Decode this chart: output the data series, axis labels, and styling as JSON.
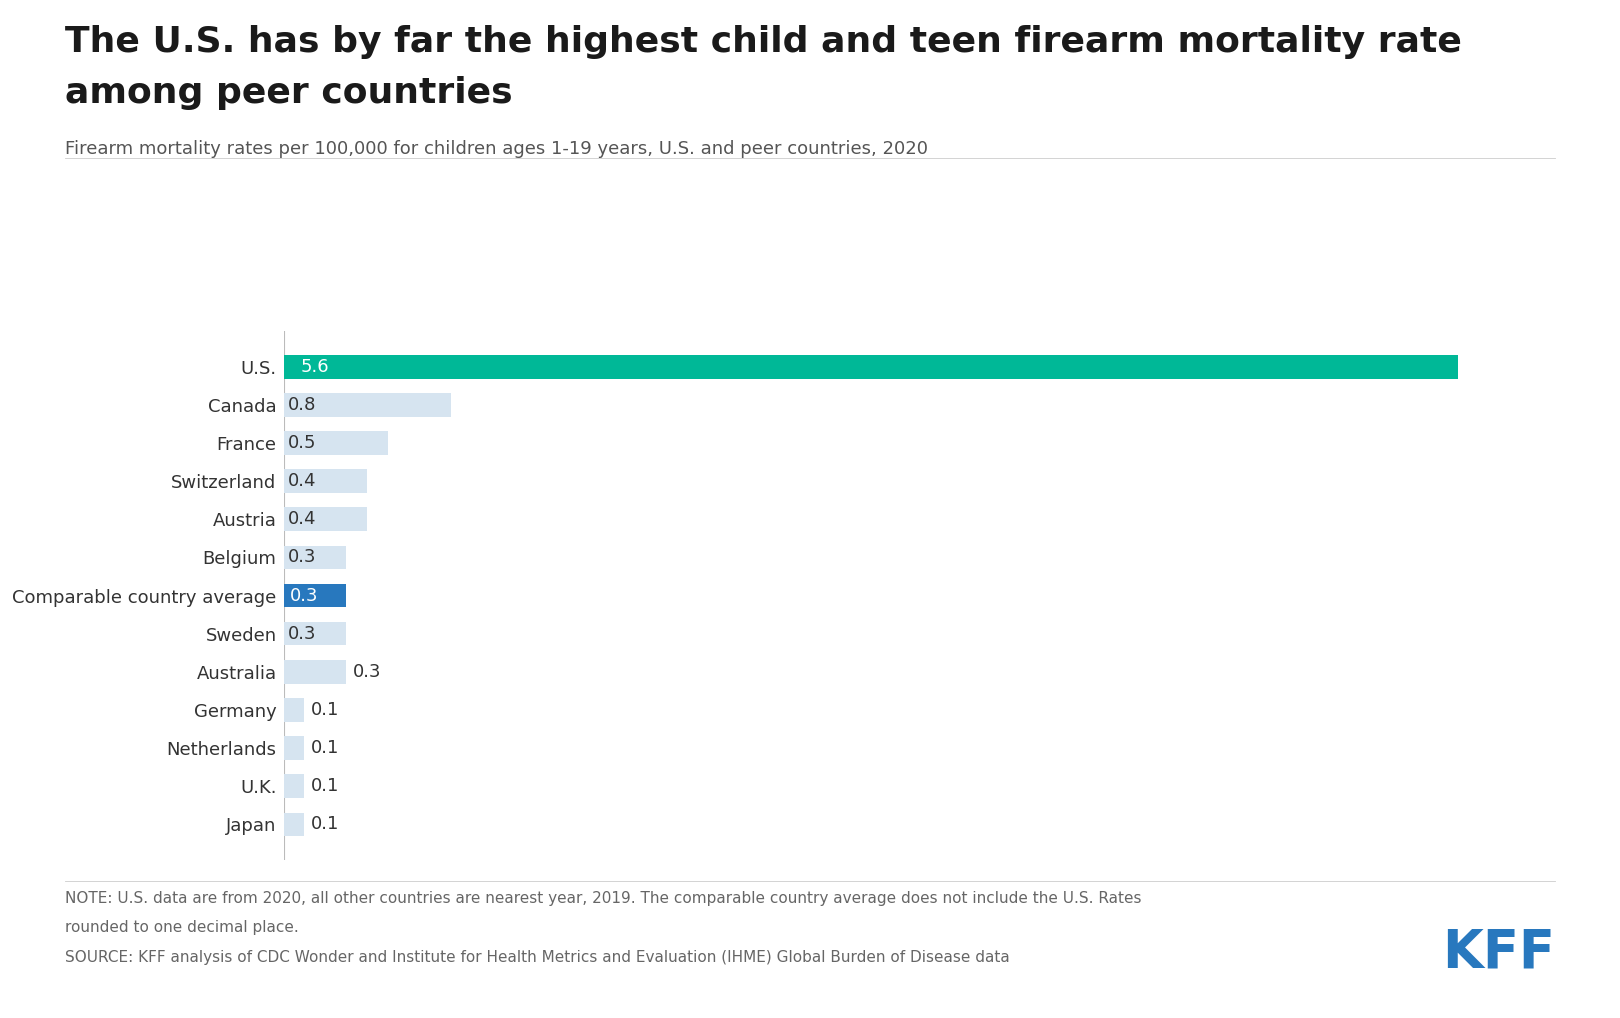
{
  "title_line1": "The U.S. has by far the highest child and teen firearm mortality rate",
  "title_line2": "among peer countries",
  "subtitle": "Firearm mortality rates per 100,000 for children ages 1-19 years, U.S. and peer countries, 2020",
  "note_line1": "NOTE: U.S. data are from 2020, all other countries are nearest year, 2019. The comparable country average does not include the U.S. Rates",
  "note_line2": "rounded to one decimal place.",
  "source_line": "SOURCE: KFF analysis of CDC Wonder and Institute for Health Metrics and Evaluation (IHME) Global Burden of Disease data",
  "countries": [
    "U.S.",
    "Canada",
    "France",
    "Switzerland",
    "Austria",
    "Belgium",
    "Comparable country average",
    "Sweden",
    "Australia",
    "Germany",
    "Netherlands",
    "U.K.",
    "Japan"
  ],
  "values": [
    5.6,
    0.8,
    0.5,
    0.4,
    0.4,
    0.3,
    0.3,
    0.3,
    0.3,
    0.1,
    0.1,
    0.1,
    0.1
  ],
  "bar_colors": [
    "#00b897",
    "#d6e4f0",
    "#d6e4f0",
    "#d6e4f0",
    "#d6e4f0",
    "#d6e4f0",
    "#2878be",
    "#d6e4f0",
    "#d6e4f0",
    "#d6e4f0",
    "#d6e4f0",
    "#d6e4f0",
    "#d6e4f0"
  ],
  "label_colors": [
    "#ffffff",
    "#333333",
    "#333333",
    "#333333",
    "#333333",
    "#333333",
    "#ffffff",
    "#333333",
    "#333333",
    "#333333",
    "#333333",
    "#333333",
    "#333333"
  ],
  "label_inside": [
    true,
    true,
    true,
    true,
    true,
    true,
    true,
    true,
    false,
    false,
    false,
    false,
    false
  ],
  "background_color": "#ffffff",
  "title_fontsize": 26,
  "subtitle_fontsize": 13,
  "note_fontsize": 11,
  "label_fontsize": 13,
  "tick_fontsize": 13,
  "kff_color": "#2878be",
  "xlim": [
    0,
    6.1
  ]
}
